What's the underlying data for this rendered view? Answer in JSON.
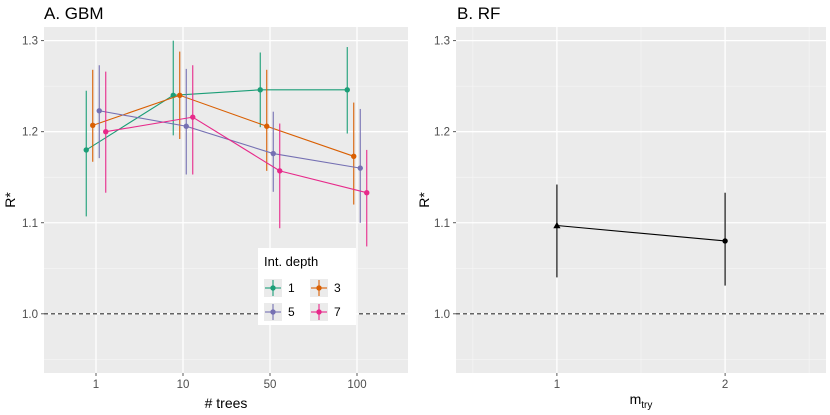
{
  "chart_data": [
    {
      "type": "line",
      "title": "A. GBM",
      "xlabel": "# trees",
      "ylabel": "R*",
      "categories": [
        "1",
        "10",
        "50",
        "100"
      ],
      "yticks": [
        1.0,
        1.1,
        1.2,
        1.3
      ],
      "ytick_labels": [
        "1.0",
        "1.1",
        "1.2",
        "1.3"
      ],
      "ylim": [
        0.935,
        1.315
      ],
      "reference_line": 1.0,
      "grid": true,
      "legend": {
        "title": "Int. depth",
        "position": "bottom-right inside",
        "entries": [
          "1",
          "3",
          "5",
          "7"
        ]
      },
      "series": [
        {
          "name": "1",
          "color": "#1b9e77",
          "values": [
            1.18,
            1.24,
            1.246,
            1.246
          ],
          "lower": [
            1.107,
            1.196,
            1.205,
            1.198
          ],
          "upper": [
            1.245,
            1.3,
            1.287,
            1.293
          ]
        },
        {
          "name": "3",
          "color": "#d95f02",
          "values": [
            1.207,
            1.24,
            1.206,
            1.173
          ],
          "lower": [
            1.167,
            1.192,
            1.157,
            1.12
          ],
          "upper": [
            1.268,
            1.288,
            1.268,
            1.232
          ]
        },
        {
          "name": "5",
          "color": "#7570b3",
          "values": [
            1.223,
            1.206,
            1.176,
            1.16
          ],
          "lower": [
            1.171,
            1.153,
            1.134,
            1.1
          ],
          "upper": [
            1.273,
            1.269,
            1.222,
            1.225
          ]
        },
        {
          "name": "7",
          "color": "#e7298a",
          "values": [
            1.2,
            1.216,
            1.157,
            1.133
          ],
          "lower": [
            1.133,
            1.153,
            1.094,
            1.074
          ],
          "upper": [
            1.266,
            1.273,
            1.209,
            1.18
          ]
        }
      ]
    },
    {
      "type": "line",
      "title": "B. RF",
      "xlabel": "m",
      "xlabel_sub": "try",
      "ylabel": "R*",
      "categories": [
        "1",
        "2"
      ],
      "xlim": [
        0.4,
        2.6
      ],
      "yticks": [
        1.0,
        1.1,
        1.2,
        1.3
      ],
      "ytick_labels": [
        "1.0",
        "1.1",
        "1.2",
        "1.3"
      ],
      "ylim": [
        0.935,
        1.315
      ],
      "reference_line": 1.0,
      "grid": true,
      "series": [
        {
          "name": "RF",
          "color": "#000000",
          "values": [
            1.097,
            1.08
          ],
          "lower": [
            1.04,
            1.031
          ],
          "upper": [
            1.142,
            1.133
          ],
          "markers": [
            "triangle",
            "circle"
          ]
        }
      ]
    }
  ]
}
